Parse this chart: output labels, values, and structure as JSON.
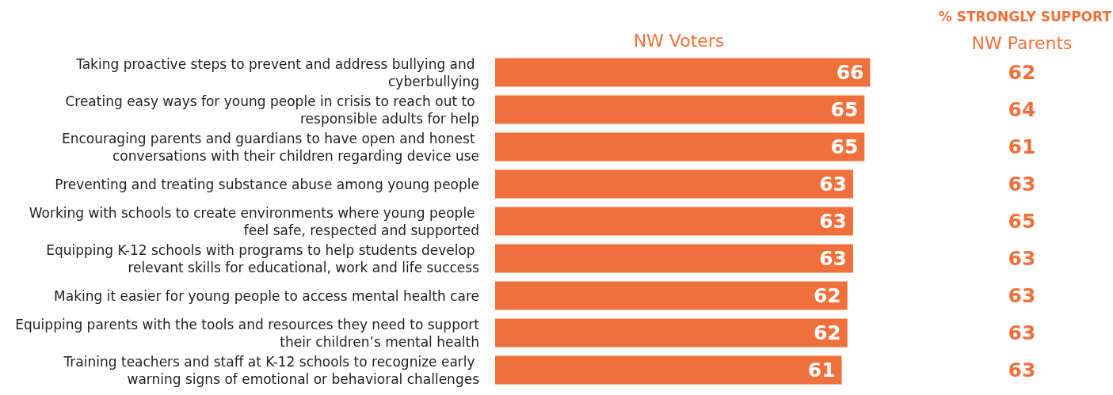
{
  "chart_data": [
    {
      "type": "bar",
      "orientation": "horizontal",
      "categories": [
        "Taking proactive steps to prevent and address bullying and cyberbullying",
        "Creating easy ways for young people in crisis to reach out to responsible adults for help",
        "Encouraging parents and guardians to have open and honest conversations with their children regarding device use",
        "Preventing and treating substance abuse among young people",
        "Working with schools to create environments where young people feel safe, respected and supported",
        "Equipping K-12 schools with programs to help students develop relevant skills for educational, work and life success",
        "Making it easier for young people to access mental health care",
        "Equipping parents with the tools and resources they need to support their children’s mental health",
        "Training teachers and staff at K-12 schools to recognize early warning signs of emotional or behavioral challenges"
      ],
      "series": [
        {
          "name": "NW Voters",
          "color": "#f0703b",
          "values": [
            66,
            65,
            65,
            63,
            63,
            63,
            62,
            62,
            61
          ]
        }
      ],
      "data_labels": true,
      "tick_labels": "y"
    },
    {
      "type": "other",
      "title": "% STRONGLY SUPPORT",
      "categories": [
        null,
        null,
        null,
        null,
        null,
        null,
        null,
        null,
        null
      ],
      "series": [
        {
          "name": "NW Parents",
          "color": "#f0703b",
          "values": [
            62,
            64,
            61,
            63,
            65,
            63,
            63,
            63,
            63
          ]
        }
      ],
      "data_labels": true
    }
  ]
}
